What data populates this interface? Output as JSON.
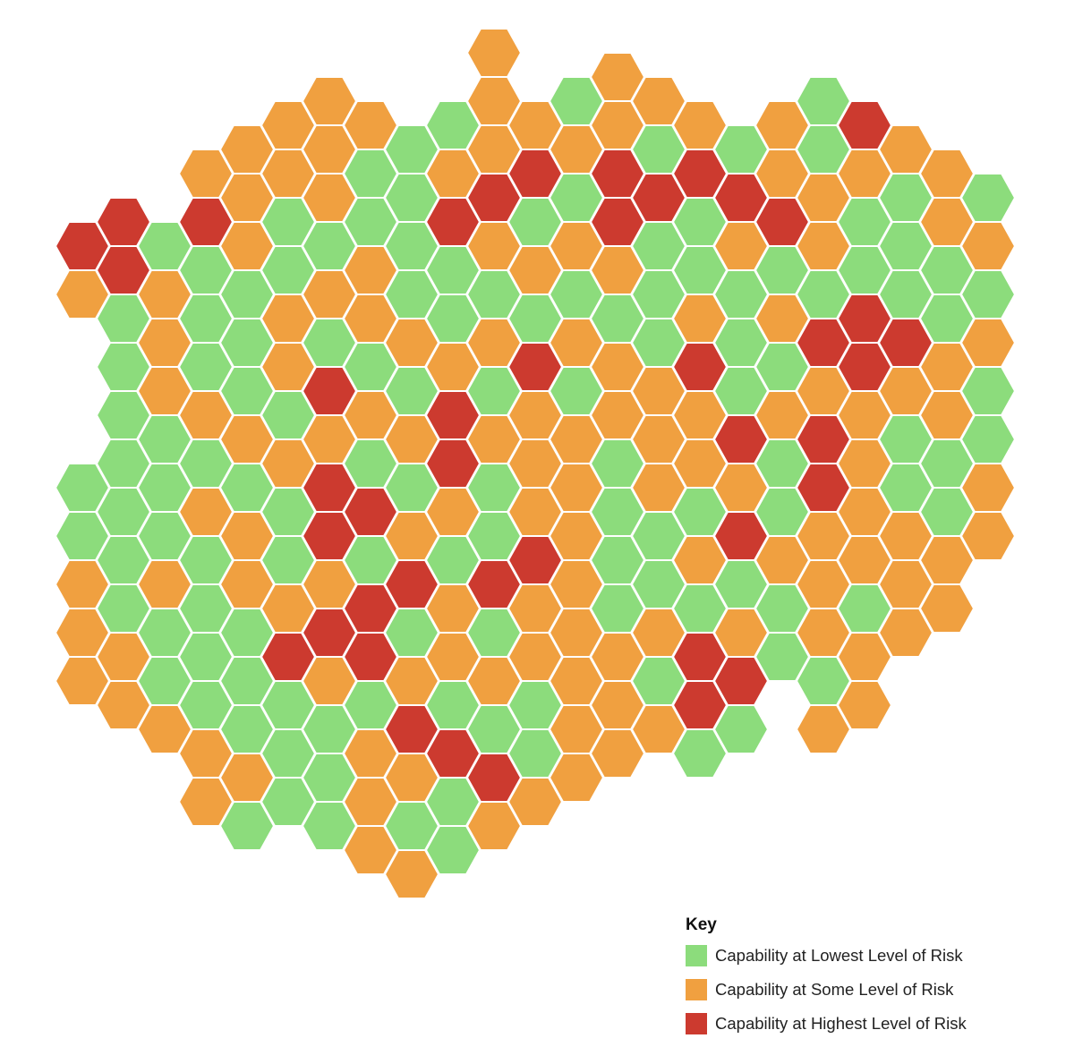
{
  "colors": {
    "low": "#8cdc7c",
    "some": "#f0a040",
    "high": "#cc3a2f"
  },
  "legend": {
    "title": "Key",
    "items": [
      {
        "key": "low",
        "label": "Capability at Lowest Level of Risk"
      },
      {
        "key": "some",
        "label": "Capability at Some Level of Risk"
      },
      {
        "key": "high",
        "label": "Capability at Highest Level of Risk"
      }
    ]
  },
  "hex_rows": [
    "............O............",
    "......O...O...GO.........",
    ".....G..OO.GOOGGO..GG....",
    ".......OOOGGOOOOOOOOGRO..",
    "......OOOOGGOOOGGOGGGGOG.",
    ".....OOOOGGOGRGRGRGOGOGOO",
    ".....OOGOOGRRGGGRGRGOGGOG",
    "...RRRGGGGGRGGRRGGGRGGGOO",
    "..ROGOOGGOGOOROGGGOOOOGRO",
    "...RGGOGGOGGGOOOGGRGOGOGG",
    "..OGOGGGOGGOGOGOGGGGGGGOG",
    "..GGOGOOGOOGOGOGGOOOORGGO",
    "...GOGGOGGOOOROOGOGRRORGO",
    "...GGGOOGGOOORROOROGRRGOO",
    "...GOOGOROGGGOGOOOGOOOOOG",
    "...GOOGGOOGRGOOOGOGOGOOOO",
    "...GGGOOOOOOOOOGOORGROGOG",
    "...GGGOOOGOROOOGOORGGOOGO",
    "..GGGOGOROGOGGOOOGOGRGGOO",
    "..GGGOGGGRROOOOGGGOGGOOGO",
    "..GOGOORRGOOGGOGGOROOGOOO",
    "..GGOGRGOGOGRRGGGOOOOOOO.",
    "..OGOGOGORRRRROGGGGOOOOG.",
    "..OGGGGORRROGOGGGGOGOGOO.",
    "..OGGGGORRGOGROOOGOROOO..",
    "..GOGGGRGRGOOOOORRGGGO...",
    "..OGGGGGOGOGOOOOGRRGGR...",
    "...OOGGGOGOGGGROGRO.GOR..",
    "....OGGGGOROGROGOGG.O....",
    ".....OGGOOOROGGOGG.......",
    "......OGGOOOROOO.........",
    ".....OGGOOGGGOO.G........",
    "......GOGOGGO............",
    "........OOOG.............",
    "..........O.............."
  ]
}
